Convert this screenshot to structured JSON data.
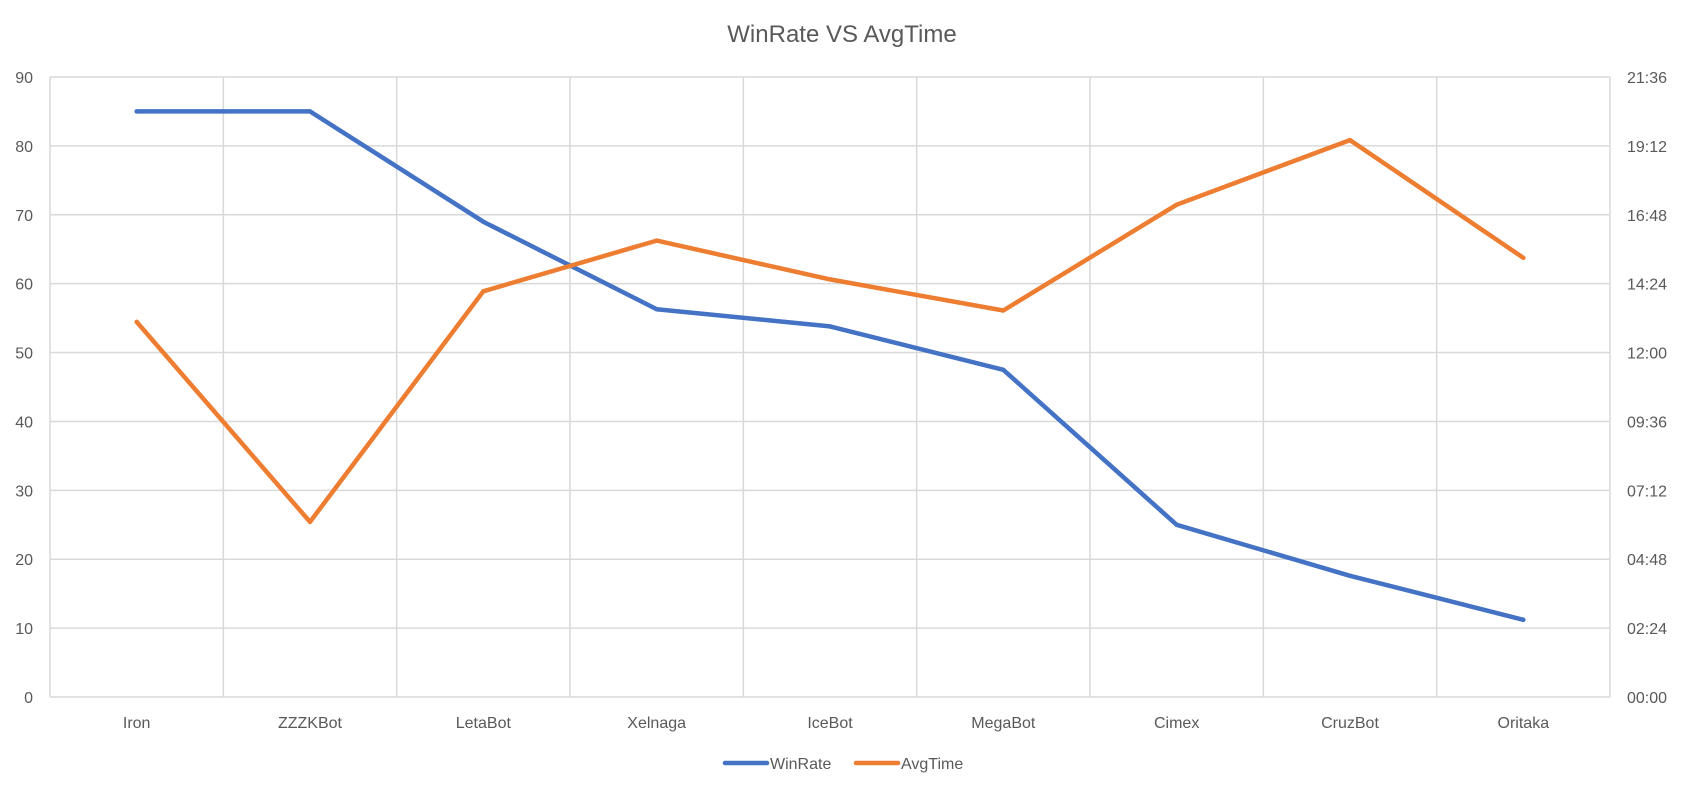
{
  "chart_data": {
    "type": "line",
    "title": "WinRate VS AvgTime",
    "categories": [
      "Iron",
      "ZZZKBot",
      "LetaBot",
      "Xelnaga",
      "IceBot",
      "MegaBot",
      "Cimex",
      "CruzBot",
      "Oritaka"
    ],
    "series": [
      {
        "name": "WinRate",
        "axis": "left",
        "color": "#4472C4",
        "values": [
          85,
          85,
          69,
          56.3,
          53.8,
          47.5,
          25,
          17.6,
          11.2
        ]
      },
      {
        "name": "AvgTime",
        "axis": "right",
        "color": "#ED7D31",
        "values": [
          "13:04",
          "06:06",
          "14:08",
          "15:54",
          "14:33",
          "13:28",
          "17:09",
          "19:24",
          "15:18"
        ]
      }
    ],
    "y_left": {
      "ylim": [
        0,
        90
      ],
      "ticks": [
        "0",
        "10",
        "20",
        "30",
        "40",
        "50",
        "60",
        "70",
        "80",
        "90"
      ]
    },
    "y_right": {
      "ylim": [
        "00:00",
        "21:36"
      ],
      "ticks": [
        "00:00",
        "02:24",
        "04:48",
        "07:12",
        "09:36",
        "12:00",
        "14:24",
        "16:48",
        "19:12",
        "21:36"
      ]
    },
    "grid": true,
    "legend_position": "bottom"
  }
}
